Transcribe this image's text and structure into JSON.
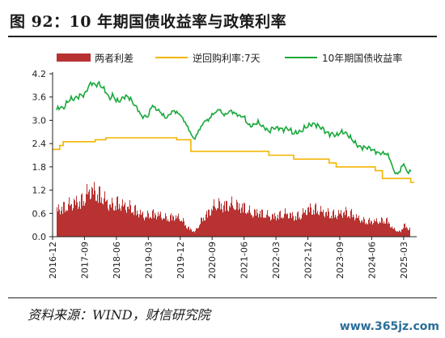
{
  "title": "图 92：10 年期国债收益率与政策利率",
  "source": "资料来源：WIND，财信研究院",
  "watermark": "www.365jz.com",
  "chart_data": {
    "type": "line",
    "title": "",
    "xlabel": "",
    "ylabel": "",
    "ylim": [
      0,
      4.2
    ],
    "yticks": [
      "0.0",
      "0.6",
      "1.2",
      "1.8",
      "2.4",
      "3.0",
      "3.6",
      "4.2"
    ],
    "x_range": [
      "2016-12",
      "2025-06"
    ],
    "xticks": [
      "2016-12",
      "2017-09",
      "2018-06",
      "2019-03",
      "2019-12",
      "2020-09",
      "2021-06",
      "2022-03",
      "2022-12",
      "2023-09",
      "2024-06",
      "2025-03"
    ],
    "grid": false,
    "legend_position": "top",
    "colors": {
      "spread": "#b83232",
      "repo": "#f2b500",
      "yield": "#18a83a"
    },
    "series": [
      {
        "name": "两者利差",
        "kind": "bar",
        "points": [
          [
            "2016-12",
            0.85
          ],
          [
            "2017-03",
            0.95
          ],
          [
            "2017-06",
            1.1
          ],
          [
            "2017-08",
            1.15
          ],
          [
            "2017-10",
            1.45
          ],
          [
            "2017-11",
            1.5
          ],
          [
            "2017-12",
            1.45
          ],
          [
            "2018-02",
            1.3
          ],
          [
            "2018-04",
            1.0
          ],
          [
            "2018-06",
            1.1
          ],
          [
            "2018-08",
            1.0
          ],
          [
            "2018-10",
            0.95
          ],
          [
            "2018-12",
            0.8
          ],
          [
            "2019-02",
            0.65
          ],
          [
            "2019-04",
            0.75
          ],
          [
            "2019-06",
            0.7
          ],
          [
            "2019-08",
            0.6
          ],
          [
            "2019-10",
            0.65
          ],
          [
            "2019-12",
            0.6
          ],
          [
            "2020-02",
            0.3
          ],
          [
            "2020-04",
            0.15
          ],
          [
            "2020-06",
            0.55
          ],
          [
            "2020-08",
            0.8
          ],
          [
            "2020-10",
            1.05
          ],
          [
            "2020-12",
            1.0
          ],
          [
            "2021-02",
            1.05
          ],
          [
            "2021-04",
            1.0
          ],
          [
            "2021-06",
            0.95
          ],
          [
            "2021-08",
            0.75
          ],
          [
            "2021-10",
            0.8
          ],
          [
            "2021-12",
            0.7
          ],
          [
            "2022-02",
            0.65
          ],
          [
            "2022-04",
            0.7
          ],
          [
            "2022-06",
            0.75
          ],
          [
            "2022-08",
            0.65
          ],
          [
            "2022-10",
            0.7
          ],
          [
            "2022-12",
            0.9
          ],
          [
            "2023-02",
            0.9
          ],
          [
            "2023-04",
            0.8
          ],
          [
            "2023-06",
            0.75
          ],
          [
            "2023-08",
            0.7
          ],
          [
            "2023-10",
            0.8
          ],
          [
            "2023-12",
            0.75
          ],
          [
            "2024-02",
            0.6
          ],
          [
            "2024-04",
            0.5
          ],
          [
            "2024-06",
            0.5
          ],
          [
            "2024-08",
            0.5
          ],
          [
            "2024-10",
            0.55
          ],
          [
            "2024-12",
            0.25
          ],
          [
            "2025-02",
            0.15
          ],
          [
            "2025-03",
            0.4
          ],
          [
            "2025-04",
            0.25
          ],
          [
            "2025-05",
            0.3
          ],
          [
            "2025-06",
            0.25
          ]
        ]
      },
      {
        "name": "逆回购利率:7天",
        "kind": "step",
        "points": [
          [
            "2016-12",
            2.25
          ],
          [
            "2017-02",
            2.35
          ],
          [
            "2017-03",
            2.45
          ],
          [
            "2017-12",
            2.5
          ],
          [
            "2018-03",
            2.55
          ],
          [
            "2019-11",
            2.5
          ],
          [
            "2020-03",
            2.2
          ],
          [
            "2022-01",
            2.1
          ],
          [
            "2022-08",
            2.0
          ],
          [
            "2023-06",
            1.9
          ],
          [
            "2023-08",
            1.8
          ],
          [
            "2024-07",
            1.7
          ],
          [
            "2024-09",
            1.5
          ],
          [
            "2025-05",
            1.4
          ],
          [
            "2025-06",
            1.4
          ]
        ]
      },
      {
        "name": "10年期国债收益率",
        "kind": "line",
        "points": [
          [
            "2016-12",
            3.05
          ],
          [
            "2017-01",
            3.25
          ],
          [
            "2017-02",
            3.35
          ],
          [
            "2017-03",
            3.3
          ],
          [
            "2017-04",
            3.45
          ],
          [
            "2017-05",
            3.55
          ],
          [
            "2017-06",
            3.55
          ],
          [
            "2017-07",
            3.6
          ],
          [
            "2017-08",
            3.65
          ],
          [
            "2017-09",
            3.65
          ],
          [
            "2017-10",
            3.85
          ],
          [
            "2017-11",
            3.98
          ],
          [
            "2017-12",
            3.9
          ],
          [
            "2018-01",
            3.95
          ],
          [
            "2018-02",
            3.85
          ],
          [
            "2018-03",
            3.75
          ],
          [
            "2018-04",
            3.55
          ],
          [
            "2018-05",
            3.65
          ],
          [
            "2018-06",
            3.5
          ],
          [
            "2018-07",
            3.5
          ],
          [
            "2018-08",
            3.6
          ],
          [
            "2018-09",
            3.62
          ],
          [
            "2018-10",
            3.55
          ],
          [
            "2018-11",
            3.4
          ],
          [
            "2018-12",
            3.3
          ],
          [
            "2019-01",
            3.1
          ],
          [
            "2019-02",
            3.1
          ],
          [
            "2019-03",
            3.1
          ],
          [
            "2019-04",
            3.4
          ],
          [
            "2019-05",
            3.3
          ],
          [
            "2019-06",
            3.25
          ],
          [
            "2019-07",
            3.15
          ],
          [
            "2019-08",
            3.05
          ],
          [
            "2019-09",
            3.15
          ],
          [
            "2019-10",
            3.25
          ],
          [
            "2019-11",
            3.2
          ],
          [
            "2019-12",
            3.15
          ],
          [
            "2020-01",
            3.0
          ],
          [
            "2020-02",
            2.85
          ],
          [
            "2020-03",
            2.65
          ],
          [
            "2020-04",
            2.5
          ],
          [
            "2020-05",
            2.7
          ],
          [
            "2020-06",
            2.85
          ],
          [
            "2020-07",
            3.0
          ],
          [
            "2020-08",
            3.0
          ],
          [
            "2020-09",
            3.15
          ],
          [
            "2020-10",
            3.2
          ],
          [
            "2020-11",
            3.3
          ],
          [
            "2020-12",
            3.15
          ],
          [
            "2021-01",
            3.15
          ],
          [
            "2021-02",
            3.25
          ],
          [
            "2021-03",
            3.2
          ],
          [
            "2021-04",
            3.15
          ],
          [
            "2021-05",
            3.1
          ],
          [
            "2021-06",
            3.1
          ],
          [
            "2021-07",
            2.9
          ],
          [
            "2021-08",
            2.85
          ],
          [
            "2021-09",
            2.9
          ],
          [
            "2021-10",
            2.95
          ],
          [
            "2021-11",
            2.85
          ],
          [
            "2021-12",
            2.8
          ],
          [
            "2022-01",
            2.7
          ],
          [
            "2022-02",
            2.8
          ],
          [
            "2022-03",
            2.8
          ],
          [
            "2022-04",
            2.8
          ],
          [
            "2022-05",
            2.75
          ],
          [
            "2022-06",
            2.8
          ],
          [
            "2022-07",
            2.75
          ],
          [
            "2022-08",
            2.65
          ],
          [
            "2022-09",
            2.7
          ],
          [
            "2022-10",
            2.7
          ],
          [
            "2022-11",
            2.8
          ],
          [
            "2022-12",
            2.85
          ],
          [
            "2023-01",
            2.9
          ],
          [
            "2023-02",
            2.9
          ],
          [
            "2023-03",
            2.85
          ],
          [
            "2023-04",
            2.8
          ],
          [
            "2023-05",
            2.7
          ],
          [
            "2023-06",
            2.65
          ],
          [
            "2023-07",
            2.65
          ],
          [
            "2023-08",
            2.6
          ],
          [
            "2023-09",
            2.68
          ],
          [
            "2023-10",
            2.7
          ],
          [
            "2023-11",
            2.65
          ],
          [
            "2023-12",
            2.55
          ],
          [
            "2024-01",
            2.45
          ],
          [
            "2024-02",
            2.35
          ],
          [
            "2024-03",
            2.3
          ],
          [
            "2024-04",
            2.3
          ],
          [
            "2024-05",
            2.3
          ],
          [
            "2024-06",
            2.25
          ],
          [
            "2024-07",
            2.2
          ],
          [
            "2024-08",
            2.15
          ],
          [
            "2024-09",
            2.15
          ],
          [
            "2024-10",
            2.15
          ],
          [
            "2024-11",
            2.05
          ],
          [
            "2024-12",
            1.75
          ],
          [
            "2025-01",
            1.6
          ],
          [
            "2025-02",
            1.7
          ],
          [
            "2025-03",
            1.9
          ],
          [
            "2025-04",
            1.65
          ],
          [
            "2025-05",
            1.7
          ],
          [
            "2025-06",
            1.65
          ]
        ]
      }
    ]
  }
}
